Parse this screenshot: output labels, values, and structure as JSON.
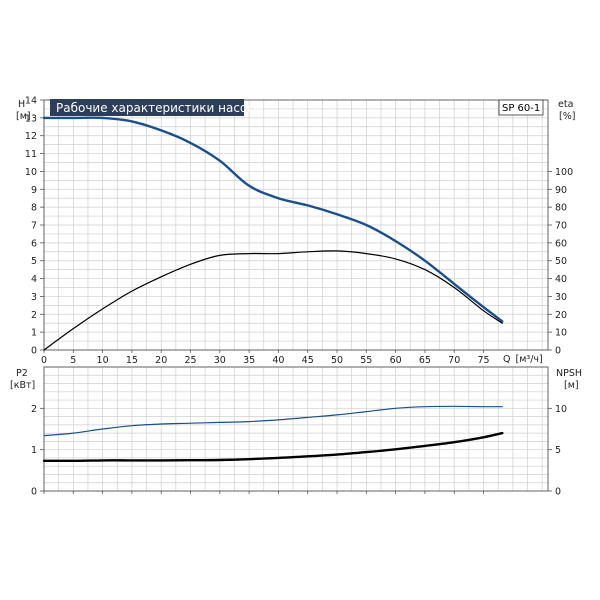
{
  "chart_data": [
    {
      "type": "line",
      "title": "Рабочие характеристики насоса",
      "model_label": "SP 60-1",
      "left_axis": {
        "label": "H",
        "unit": "[м]",
        "range": [
          0,
          14
        ],
        "ticks": [
          0,
          1,
          2,
          3,
          4,
          5,
          6,
          7,
          8,
          9,
          10,
          11,
          12,
          13,
          14
        ]
      },
      "right_axis": {
        "label": "eta",
        "unit": "[%]",
        "range": [
          0,
          140
        ],
        "ticks": [
          0,
          10,
          20,
          30,
          40,
          50,
          60,
          70,
          80,
          90,
          100
        ]
      },
      "x_axis": {
        "label": "Q",
        "unit": "[м³/ч]",
        "range": [
          0,
          86
        ],
        "ticks": [
          0,
          5,
          10,
          15,
          20,
          25,
          30,
          35,
          40,
          45,
          50,
          55,
          60,
          65,
          70,
          75
        ]
      },
      "grid": true,
      "series": [
        {
          "axis": "left",
          "color": "#1a4f8c",
          "x": [
            0,
            5,
            10,
            15,
            20,
            25,
            30,
            35,
            40,
            45,
            50,
            55,
            60,
            65,
            70,
            75,
            78.2
          ],
          "y": [
            13,
            13,
            13,
            12.8,
            12.3,
            11.6,
            10.6,
            9.2,
            8.5,
            8.1,
            7.6,
            7.0,
            6.1,
            5.0,
            3.7,
            2.4,
            1.6
          ]
        },
        {
          "axis": "right",
          "color": "#000000",
          "x": [
            0,
            5,
            10,
            15,
            20,
            25,
            30,
            35,
            40,
            45,
            50,
            55,
            60,
            65,
            70,
            75,
            78.2
          ],
          "y": [
            0,
            12,
            23,
            33,
            41,
            48,
            53,
            54,
            54,
            55,
            55.5,
            54,
            51,
            45,
            35,
            22,
            15
          ]
        }
      ]
    },
    {
      "type": "line",
      "left_axis": {
        "label": "P2",
        "unit": "[кВт]",
        "range": [
          0,
          3
        ],
        "ticks": [
          0,
          1,
          2
        ]
      },
      "right_axis": {
        "label": "NPSH",
        "unit": "[м]",
        "range": [
          0,
          15
        ],
        "ticks": [
          0,
          5,
          10
        ]
      },
      "x_axis": {
        "range": [
          0,
          86
        ]
      },
      "grid": true,
      "series": [
        {
          "axis": "right",
          "color": "#1a4f8c",
          "x": [
            0,
            5,
            10,
            15,
            20,
            25,
            30,
            35,
            40,
            45,
            50,
            55,
            60,
            65,
            70,
            75,
            78.2
          ],
          "y": [
            6.7,
            7.0,
            7.5,
            7.9,
            8.1,
            8.2,
            8.3,
            8.4,
            8.6,
            8.9,
            9.2,
            9.6,
            10.0,
            10.2,
            10.25,
            10.2,
            10.2
          ]
        },
        {
          "axis": "left",
          "color": "#000000",
          "x": [
            0,
            5,
            10,
            15,
            20,
            25,
            30,
            35,
            40,
            45,
            50,
            55,
            60,
            65,
            70,
            75,
            78.2
          ],
          "y": [
            0.73,
            0.73,
            0.74,
            0.74,
            0.74,
            0.745,
            0.75,
            0.77,
            0.8,
            0.84,
            0.88,
            0.94,
            1.01,
            1.09,
            1.18,
            1.3,
            1.4
          ]
        }
      ]
    }
  ]
}
